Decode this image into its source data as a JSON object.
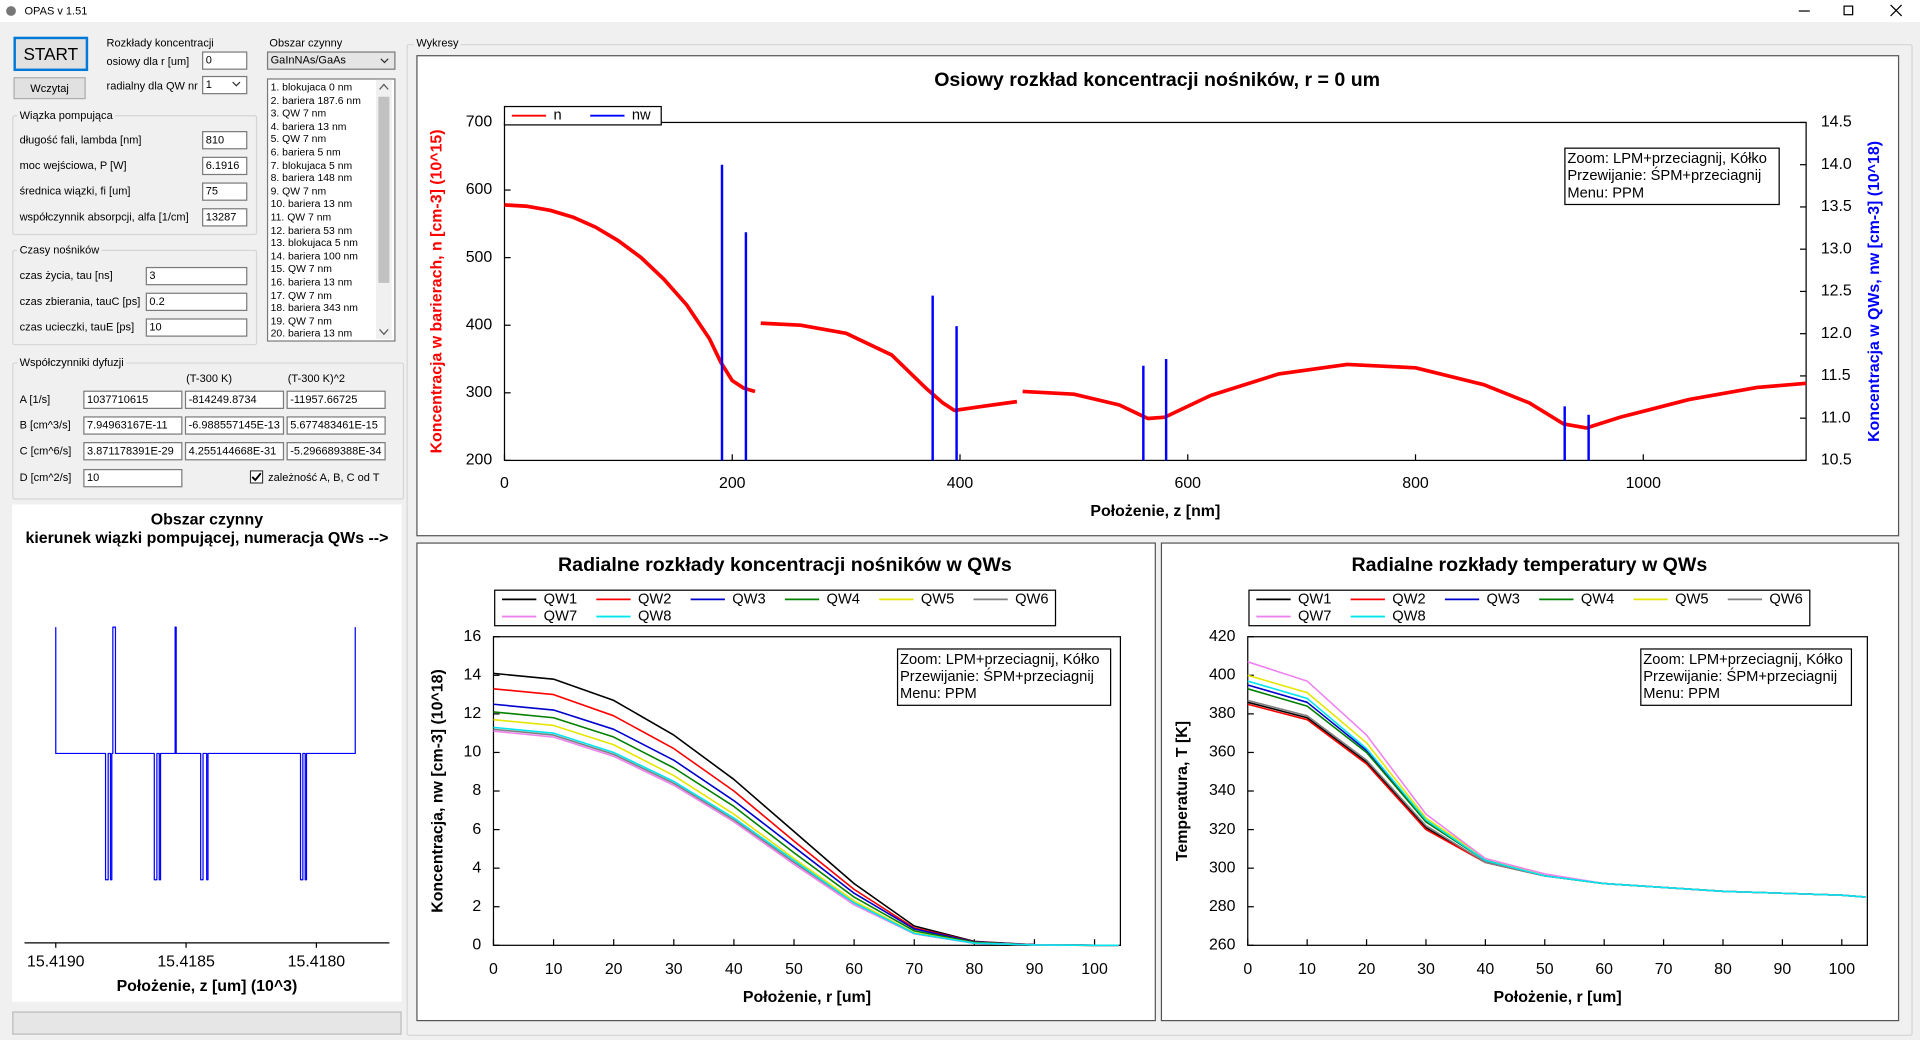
{
  "window": {
    "title": "OPAS v 1.51"
  },
  "controls": {
    "start": "START",
    "load": "Wczytaj",
    "distributions": {
      "label": "Rozkłady koncentracji",
      "axial_label": "osiowy dla r [um]",
      "axial_value": "0",
      "radial_label": "radialny dla QW nr",
      "radial_value": "1"
    },
    "active_region": {
      "label": "Obszar czynny",
      "material": "GaInNAs/GaAs",
      "layers": [
        "1. blokujaca 0 nm",
        "2. bariera 187.6 nm",
        "3. QW 7 nm",
        "4. bariera 13 nm",
        "5. QW 7 nm",
        "6. bariera 5 nm",
        "7. blokujaca 5 nm",
        "8. bariera 148 nm",
        "9. QW 7 nm",
        "10. bariera 13 nm",
        "11. QW 7 nm",
        "12. bariera 53 nm",
        "13. blokujaca 5 nm",
        "14. bariera 100 nm",
        "15. QW 7 nm",
        "16. bariera 13 nm",
        "17. QW 7 nm",
        "18. bariera 343 nm",
        "19. QW 7 nm",
        "20. bariera 13 nm"
      ]
    }
  },
  "pump": {
    "title": "Wiązka pompująca",
    "rows": [
      {
        "label": "długość fali, lambda [nm]",
        "value": "810"
      },
      {
        "label": "moc wejściowa, P [W]",
        "value": "6.1916"
      },
      {
        "label": "średnica wiązki, fi [um]",
        "value": "75"
      },
      {
        "label": "współczynnik absorpcji, alfa [1/cm]",
        "value": "13287"
      }
    ]
  },
  "times": {
    "title": "Czasy nośników",
    "rows": [
      {
        "label": "czas życia, tau [ns]",
        "value": "3"
      },
      {
        "label": "czas zbierania, tauC [ps]",
        "value": "0.2"
      },
      {
        "label": "czas ucieczki, tauE [ps]",
        "value": "10"
      }
    ]
  },
  "diffusion": {
    "title": "Współczynniki dyfuzji",
    "headers": [
      "(T-300 K)",
      "(T-300 K)^2"
    ],
    "rows": [
      {
        "label": "A [1/s]",
        "values": [
          "1037710615",
          "-814249.8734",
          "-11957.66725"
        ]
      },
      {
        "label": "B [cm^3/s]",
        "values": [
          "7.94963167E-11",
          "-6.988557145E-13",
          "5.677483461E-15"
        ]
      },
      {
        "label": "C [cm^6/s]",
        "values": [
          "3.871178391E-29",
          "4.255144668E-31",
          "-5.296689388E-34"
        ]
      }
    ],
    "d_label": "D [cm^2/s]",
    "d_value": "10",
    "abc_label": "zależność A, B, C od T",
    "abc_dependent": true
  },
  "plots_group": "Wykresy",
  "chart_data": [
    {
      "type": "line",
      "title": "Obszar czynny",
      "subtitle": "kierunek wiązki pompującej, numeracja QWs -->",
      "xlabel": "Położenie, z [um] (10^3)",
      "xlim": [
        15.41912,
        15.41772
      ],
      "ylim": [
        -1.5,
        1.7
      ],
      "xticks": [
        {
          "value": 15.419,
          "label": "15.4190"
        },
        {
          "value": 15.4185,
          "label": "15.4185"
        },
        {
          "value": 15.418,
          "label": "15.4180"
        }
      ],
      "series": [
        {
          "color": "#0000ff",
          "x": [
            15.419,
            15.419,
            15.418809,
            15.418809,
            15.418799,
            15.418799,
            15.41879,
            15.41879,
            15.418785,
            15.418785,
            15.418781,
            15.418781,
            15.418771,
            15.418771,
            15.418622,
            15.418622,
            15.418612,
            15.418612,
            15.418603,
            15.418603,
            15.418598,
            15.418598,
            15.418542,
            15.418542,
            15.418538,
            15.418538,
            15.418444,
            15.418444,
            15.418435,
            15.418435,
            15.418421,
            15.418421,
            15.418416,
            15.418416,
            15.418061,
            15.418061,
            15.418052,
            15.418052,
            15.418043,
            15.418043,
            15.418038,
            15.418038,
            15.417851,
            15.417851
          ],
          "values": [
            1,
            0,
            0,
            -1,
            -1,
            0,
            0,
            -1,
            -1,
            0,
            0,
            1,
            1,
            0,
            0,
            -1,
            -1,
            0,
            0,
            -1,
            -1,
            0,
            0,
            1,
            1,
            0,
            0,
            -1,
            -1,
            0,
            0,
            -1,
            -1,
            0,
            0,
            -1,
            -1,
            0,
            0,
            -1,
            -1,
            0,
            0,
            1
          ]
        }
      ]
    },
    {
      "type": "line",
      "title": "Osiowy rozkład koncentracji nośników, r = 0 um",
      "xlabel": "Położenie, z [nm]",
      "ylabel": "Koncentracja w barierach, n [cm-3] (10^15)",
      "y2label": "Koncentracja w QWs, nw [cm-3] (10^18)",
      "xlim": [
        0,
        1143
      ],
      "xticks": [
        0,
        200,
        400,
        600,
        800,
        1000
      ],
      "ylim": [
        200,
        700
      ],
      "yticks": [
        200,
        300,
        400,
        500,
        600,
        700
      ],
      "y2lim": [
        10.5,
        14.5
      ],
      "y2ticks": [
        10.5,
        {
          "value": 11,
          "label": "11.0"
        },
        11.5,
        {
          "value": 12,
          "label": "12.0"
        },
        12.5,
        {
          "value": 13,
          "label": "13.0"
        },
        13.5,
        {
          "value": 14,
          "label": "14.0"
        },
        14.5
      ],
      "legend": "top-left",
      "annotations": [
        "Zoom: LPM+przeciagnij, Kółko",
        "Przewijanie: ŚPM+przeciagnij",
        "Menu: PPM"
      ],
      "series": [
        {
          "name": "n",
          "color": "#ff0000",
          "style": "line",
          "x": [
            0,
            20,
            40,
            60,
            80,
            100,
            120,
            140,
            160,
            180,
            190,
            200,
            210,
            220,
            222,
            225,
            260,
            300,
            340,
            370,
            385,
            395,
            420,
            450,
            452,
            455,
            500,
            540,
            565,
            580,
            620,
            680,
            740,
            800,
            860,
            900,
            930,
            950,
            980,
            1040,
            1100,
            1143
          ],
          "values": [
            578,
            576,
            570,
            560,
            545,
            525,
            500,
            468,
            430,
            380,
            345,
            318,
            307,
            302,
            null,
            403,
            400,
            388,
            356,
            307,
            285,
            274,
            280,
            287,
            null,
            302,
            298,
            282,
            262,
            264,
            296,
            328,
            342,
            337,
            312,
            285,
            254,
            248,
            264,
            290,
            308,
            314
          ]
        },
        {
          "name": "nw",
          "color": "#0000ff",
          "style": "stem",
          "axis": "y2",
          "x": [
            191,
            212,
            376,
            397,
            561,
            581,
            931,
            952
          ],
          "values": [
            14.0,
            13.2,
            12.45,
            12.09,
            11.62,
            11.7,
            11.14,
            11.04
          ]
        }
      ]
    },
    {
      "type": "line",
      "title": "Radialne rozkłady koncentracji nośników w QWs",
      "xlabel": "Położenie, r [um]",
      "ylabel": "Koncentracja, nw [cm-3] (10^18)",
      "xlim": [
        0,
        104.3
      ],
      "xticks": [
        0,
        10,
        20,
        30,
        40,
        50,
        60,
        70,
        80,
        90,
        100
      ],
      "ylim": [
        0,
        16
      ],
      "yticks": [
        0,
        2,
        4,
        6,
        8,
        10,
        12,
        14,
        16
      ],
      "legend": "top",
      "annotations": [
        "Zoom: LPM+przeciagnij, Kółko",
        "Przewijanie: ŚPM+przeciagnij",
        "Menu: PPM"
      ],
      "x": [
        0,
        10,
        20,
        30,
        40,
        50,
        60,
        70,
        80,
        90,
        100,
        104
      ],
      "series": [
        {
          "name": "QW1",
          "color": "#000000",
          "values": [
            14.1,
            13.8,
            12.7,
            10.9,
            8.6,
            5.9,
            3.2,
            1.0,
            0.2,
            0.03,
            0,
            0
          ]
        },
        {
          "name": "QW2",
          "color": "#ff0000",
          "values": [
            13.3,
            13.0,
            11.9,
            10.2,
            8.0,
            5.4,
            2.9,
            0.9,
            0.18,
            0.03,
            0,
            0
          ]
        },
        {
          "name": "QW3",
          "color": "#0000cd",
          "values": [
            12.5,
            12.2,
            11.2,
            9.6,
            7.5,
            5.1,
            2.7,
            0.85,
            0.17,
            0.03,
            0,
            0
          ]
        },
        {
          "name": "QW4",
          "color": "#008000",
          "values": [
            12.1,
            11.8,
            10.8,
            9.2,
            7.2,
            4.8,
            2.5,
            0.75,
            0.15,
            0.02,
            0,
            0
          ]
        },
        {
          "name": "QW5",
          "color": "#e6e600",
          "values": [
            11.7,
            11.4,
            10.4,
            8.8,
            6.8,
            4.5,
            2.3,
            0.65,
            0.12,
            0.02,
            0,
            0
          ]
        },
        {
          "name": "QW6",
          "color": "#808080",
          "values": [
            11.2,
            10.9,
            9.9,
            8.4,
            6.5,
            4.3,
            2.2,
            0.6,
            0.11,
            0.02,
            0,
            0
          ]
        },
        {
          "name": "QW7",
          "color": "#ee82ee",
          "values": [
            11.1,
            10.8,
            9.8,
            8.3,
            6.4,
            4.2,
            2.1,
            0.6,
            0.1,
            0.02,
            0,
            0
          ]
        },
        {
          "name": "QW8",
          "color": "#00e5ee",
          "values": [
            11.3,
            11.0,
            10.0,
            8.5,
            6.6,
            4.4,
            2.2,
            0.62,
            0.11,
            0.02,
            0,
            0
          ]
        }
      ]
    },
    {
      "type": "line",
      "title": "Radialne rozkłady temperatury w QWs",
      "xlabel": "Położenie, r [um]",
      "ylabel": "Temperatura, T [K]",
      "xlim": [
        0,
        104.3
      ],
      "xticks": [
        0,
        10,
        20,
        30,
        40,
        50,
        60,
        70,
        80,
        90,
        100
      ],
      "ylim": [
        260,
        420
      ],
      "yticks": [
        260,
        280,
        300,
        320,
        340,
        360,
        380,
        400,
        420
      ],
      "legend": "top",
      "annotations": [
        "Zoom: LPM+przeciagnij, Kółko",
        "Przewijanie: ŚPM+przeciagnij",
        "Menu: PPM"
      ],
      "x": [
        0,
        10,
        20,
        30,
        40,
        50,
        60,
        70,
        80,
        90,
        100,
        104
      ],
      "series": [
        {
          "name": "QW1",
          "color": "#000000",
          "values": [
            386,
            378,
            355,
            321,
            303,
            296,
            292,
            290,
            288,
            287,
            286,
            285
          ]
        },
        {
          "name": "QW2",
          "color": "#ff0000",
          "values": [
            385,
            377,
            354,
            320,
            303,
            296,
            292,
            290,
            288,
            287,
            286,
            285
          ]
        },
        {
          "name": "QW3",
          "color": "#0000cd",
          "values": [
            395,
            386,
            361,
            324,
            304,
            296,
            292,
            290,
            288,
            287,
            286,
            285
          ]
        },
        {
          "name": "QW4",
          "color": "#008000",
          "values": [
            393,
            384,
            360,
            324,
            304,
            296,
            292,
            290,
            288,
            287,
            286,
            285
          ]
        },
        {
          "name": "QW5",
          "color": "#e6e600",
          "values": [
            400,
            391,
            365,
            326,
            305,
            296,
            292,
            290,
            288,
            287,
            286,
            285
          ]
        },
        {
          "name": "QW6",
          "color": "#808080",
          "values": [
            387,
            379,
            356,
            322,
            303,
            296,
            292,
            290,
            288,
            287,
            286,
            285
          ]
        },
        {
          "name": "QW7",
          "color": "#ee82ee",
          "values": [
            407,
            397,
            369,
            328,
            305,
            297,
            292,
            290,
            288,
            287,
            286,
            285
          ]
        },
        {
          "name": "QW8",
          "color": "#00e5ee",
          "values": [
            397,
            388,
            362,
            325,
            304,
            296,
            292,
            290,
            288,
            287,
            286,
            285
          ]
        }
      ]
    }
  ]
}
